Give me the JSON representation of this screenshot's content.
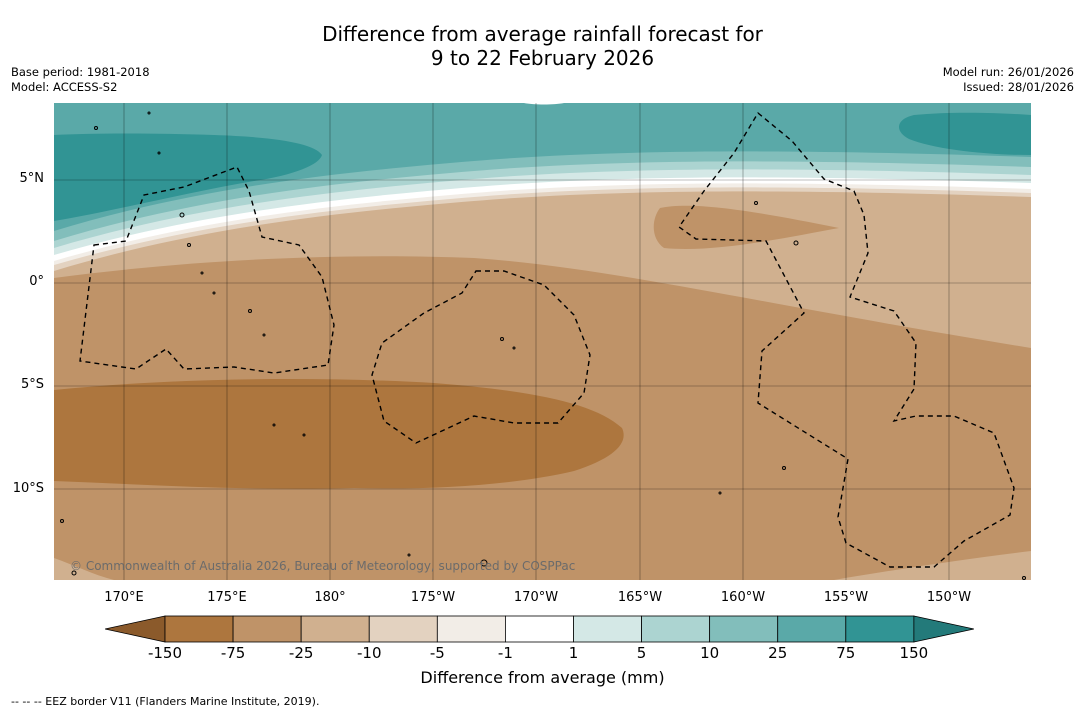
{
  "title": {
    "line1": "Difference from average rainfall forecast for",
    "line2": "9 to 22 February 2026"
  },
  "meta_left": {
    "base_period": "Base period: 1981-2018",
    "model": "Model: ACCESS-S2"
  },
  "meta_right": {
    "model_run": "Model run: 26/01/2026",
    "issued": "Issued: 28/01/2026"
  },
  "map": {
    "lat_labels": [
      "5°N",
      "0°",
      "5°S",
      "10°S"
    ],
    "lon_labels": [
      "170°E",
      "175°E",
      "180°",
      "175°W",
      "170°W",
      "165°W",
      "160°W",
      "155°W",
      "150°W"
    ],
    "copyright": "© Commonwealth of Australia 2026, Bureau of Meteorology, supported by COSPPac"
  },
  "colorbar": {
    "ticks": [
      "-150",
      "-75",
      "-25",
      "-10",
      "-5",
      "-1",
      "1",
      "5",
      "10",
      "25",
      "75",
      "150"
    ],
    "colors": [
      "#8b5a2b",
      "#ad763e",
      "#bf9368",
      "#d0b08f",
      "#e3d2c0",
      "#f2ede7",
      "#ffffff",
      "#d4e8e6",
      "#acd4d1",
      "#82bebb",
      "#5aa9a8",
      "#319494",
      "#237a7a"
    ],
    "label": "Difference from average (mm)"
  },
  "footnote": "--  --  -- EEZ border V11 (Flanders Marine Institute, 2019)."
}
